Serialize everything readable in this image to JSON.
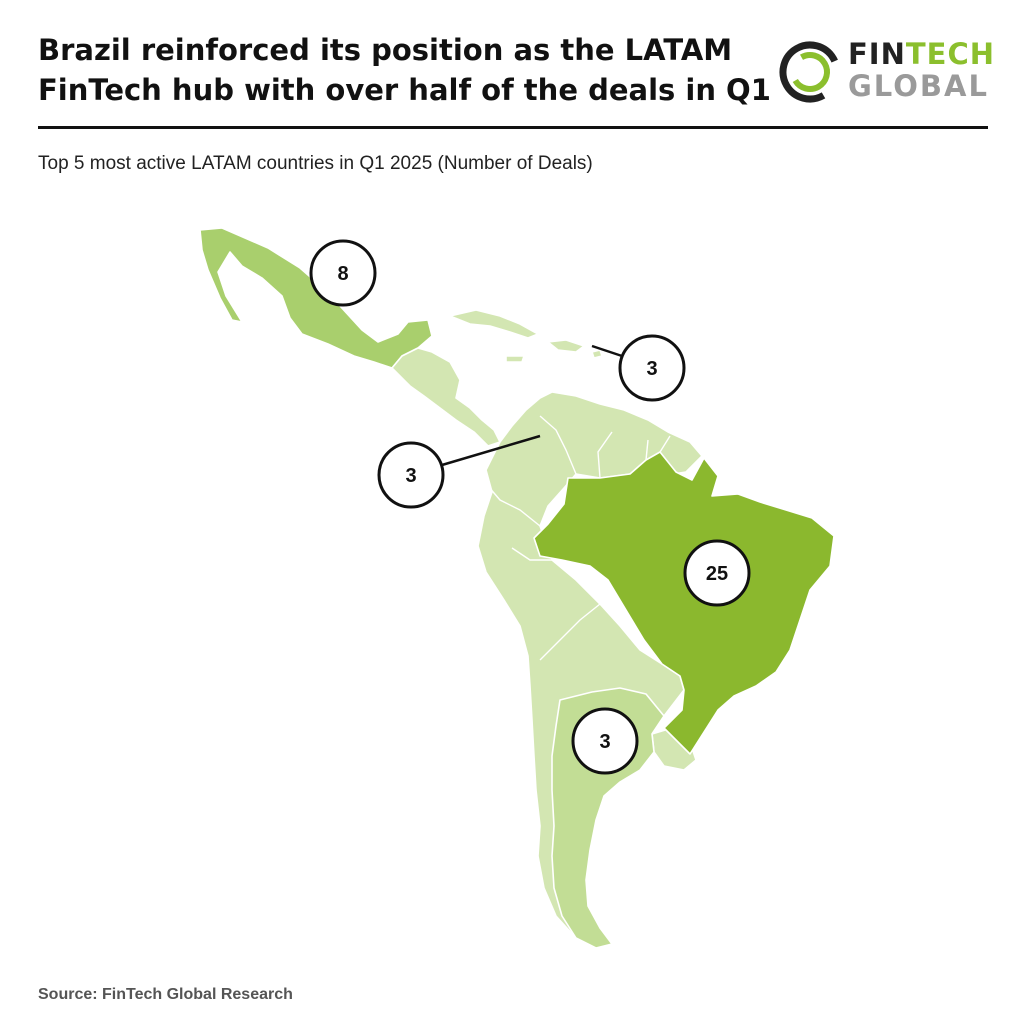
{
  "header": {
    "headline_line1": "Brazil reinforced its position as the LATAM",
    "headline_line2": "FinTech hub with over half of the deals in Q1"
  },
  "logo": {
    "word1_dark": "FIN",
    "word1_accent": "TECH",
    "word2": "GLOBAL"
  },
  "subtitle": "Top 5 most active LATAM countries in Q1 2025 (Number of Deals)",
  "colors": {
    "highlight": "#8bb82e",
    "medium": "#a9cf6d",
    "light": "#d3e6b2",
    "border": "#ffffff"
  },
  "callouts": [
    {
      "id": "mexico",
      "value": "8"
    },
    {
      "id": "caribbean",
      "value": "3"
    },
    {
      "id": "colombia",
      "value": "3"
    },
    {
      "id": "brazil",
      "value": "25"
    },
    {
      "id": "argentina",
      "value": "3"
    }
  ],
  "source": "Source: FinTech Global Research"
}
